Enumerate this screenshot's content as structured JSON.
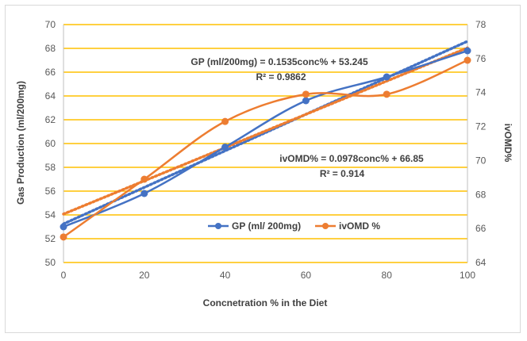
{
  "chart_data": {
    "type": "line",
    "title": "",
    "xlabel": "Concnetration % in the Diet",
    "ylabel": "Gas Production (ml/200mg)",
    "y2label": "ivOMD%",
    "x": [
      0,
      20,
      40,
      60,
      80,
      100
    ],
    "xlim": [
      0,
      100
    ],
    "ylim": [
      50,
      70
    ],
    "y2lim": [
      64,
      78
    ],
    "x_ticks": [
      "0",
      "20",
      "40",
      "60",
      "80",
      "100"
    ],
    "y_ticks": [
      "50",
      "52",
      "54",
      "56",
      "58",
      "60",
      "62",
      "64",
      "66",
      "68",
      "70"
    ],
    "y2_ticks": [
      "64",
      "66",
      "68",
      "70",
      "72",
      "74",
      "76",
      "78"
    ],
    "grid": true,
    "legend_position": "bottom-center",
    "series": [
      {
        "name": "GP (ml/ 200mg)",
        "axis": "left",
        "color": "#4472C4",
        "values": [
          53.0,
          55.8,
          59.7,
          63.6,
          65.6,
          67.8
        ]
      },
      {
        "name": "ivOMD %",
        "axis": "right",
        "color": "#ED7D31",
        "values": [
          65.5,
          68.9,
          72.3,
          73.9,
          73.9,
          75.9
        ]
      }
    ],
    "trendlines": [
      {
        "series": "GP (ml/ 200mg)",
        "axis": "left",
        "slope": 0.1535,
        "intercept": 53.245,
        "color": "#4472C4",
        "style": "dotted"
      },
      {
        "series": "ivOMD %",
        "axis": "right",
        "slope": 0.0978,
        "intercept": 66.85,
        "color": "#ED7D31",
        "style": "dotted"
      }
    ],
    "annotations": [
      {
        "id": "gp_eq",
        "text": "GP (ml/200mg) = 0.1535conc% + 53.245"
      },
      {
        "id": "gp_r2",
        "text": "R² = 0.9862"
      },
      {
        "id": "iv_eq",
        "text": "ivOMD% = 0.0978conc% + 66.85"
      },
      {
        "id": "iv_r2",
        "text": "R² = 0.914"
      }
    ]
  }
}
